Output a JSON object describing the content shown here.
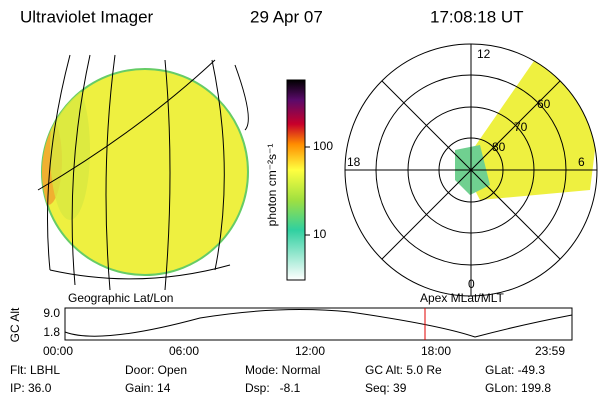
{
  "header": {
    "title": "Ultraviolet Imager",
    "date": "29 Apr 07",
    "time": "17:08:18 UT"
  },
  "colorbar": {
    "unit": "photon cm⁻²s⁻¹",
    "ticks": [
      "100",
      "10"
    ]
  },
  "polar": {
    "hour_labels": [
      "12",
      "18",
      "6",
      "0"
    ],
    "lat_labels": [
      "60",
      "70",
      "80"
    ]
  },
  "orbit": {
    "left_label": "Geographic Lat/Lon",
    "right_label": "Apex MLat/MLT",
    "axis_label": "GC Alt",
    "yticks": [
      "9.0",
      "1.8"
    ],
    "xticks": [
      "00:00",
      "06:00",
      "12:00",
      "18:00",
      "23:59"
    ]
  },
  "footer": {
    "rows": [
      [
        "Flt: LBHL",
        "Door: Open",
        "Mode: Normal",
        "GC Alt: 5.0 Re",
        "GLat: -49.3"
      ],
      [
        "IP: 36.0",
        "Gain: 14",
        "Dsp:   -8.1",
        "Seq: 39",
        "GLon: 199.8"
      ]
    ]
  }
}
